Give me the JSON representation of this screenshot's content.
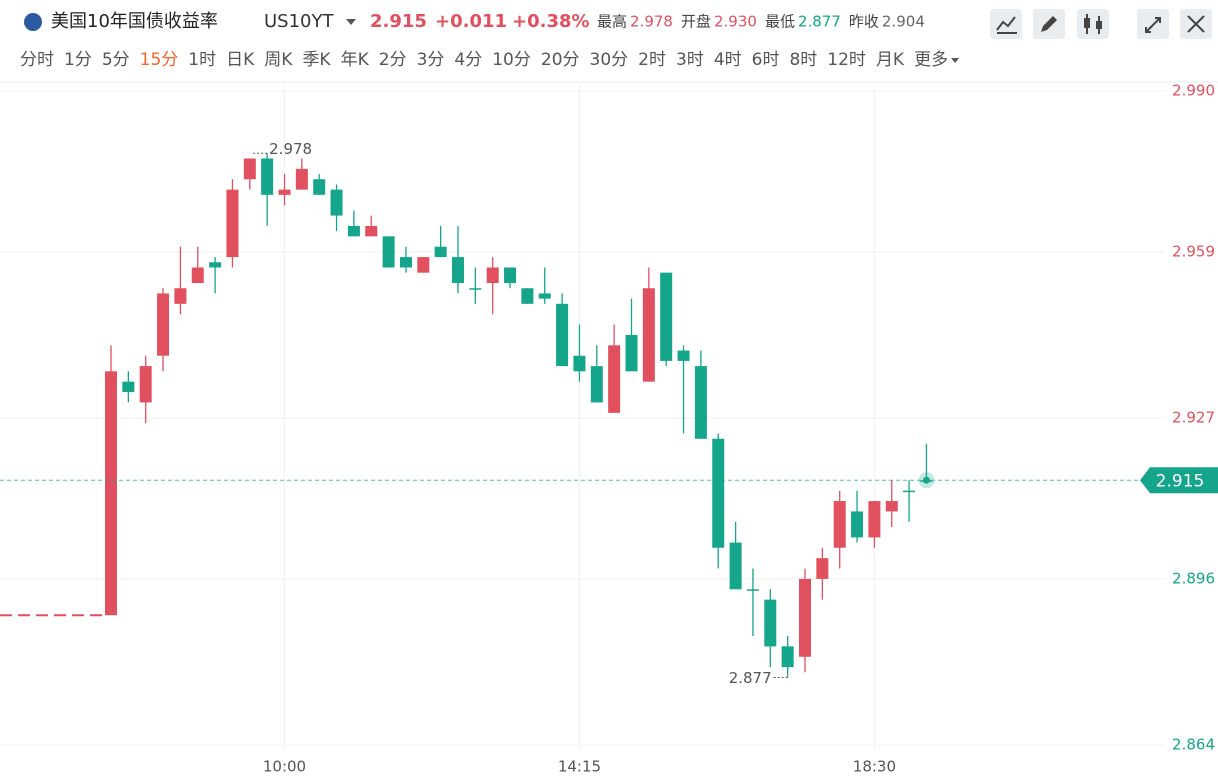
{
  "header": {
    "title": "美国10年国债收益率",
    "symbol": "US10YT",
    "price": "2.915",
    "change": "+0.011",
    "change_pct": "+0.38%",
    "stats": [
      {
        "label": "最高",
        "value": "2.978"
      },
      {
        "label": "开盘",
        "value": "2.930"
      },
      {
        "label": "最低",
        "value": "2.877"
      },
      {
        "label": "昨收",
        "value": "2.904"
      }
    ]
  },
  "tabs": [
    "分时",
    "1分",
    "5分",
    "15分",
    "1时",
    "日K",
    "周K",
    "季K",
    "年K",
    "2分",
    "3分",
    "4分",
    "10分",
    "20分",
    "30分",
    "2时",
    "3时",
    "4时",
    "6时",
    "8时",
    "12时",
    "月K",
    "更多"
  ],
  "active_tab": 3,
  "chart_data": {
    "type": "candlestick",
    "up_color": "#e0505f",
    "down_color": "#14a58a",
    "grid": true,
    "categories": [
      null,
      null,
      null,
      null,
      null,
      null,
      null,
      null,
      null,
      null,
      "10:00",
      null,
      null,
      null,
      null,
      null,
      null,
      null,
      null,
      null,
      null,
      null,
      null,
      null,
      null,
      null,
      null,
      "14:15",
      null,
      null,
      null,
      null,
      null,
      null,
      null,
      null,
      null,
      null,
      null,
      null,
      null,
      null,
      null,
      null,
      "18:30",
      null,
      null,
      null
    ],
    "open": [
      2.889,
      2.934,
      2.93,
      2.939,
      2.949,
      2.953,
      2.957,
      2.958,
      2.973,
      2.977,
      2.97,
      2.971,
      2.973,
      2.971,
      2.964,
      2.962,
      2.962,
      2.958,
      2.955,
      2.96,
      2.958,
      2.952,
      2.953,
      2.956,
      2.952,
      2.951,
      2.949,
      2.939,
      2.937,
      2.928,
      2.943,
      2.934,
      2.955,
      2.94,
      2.937,
      2.923,
      2.903,
      2.894,
      2.892,
      2.883,
      2.881,
      2.896,
      2.902,
      2.909,
      2.904,
      2.909,
      2.913,
      2.915
    ],
    "high": [
      2.941,
      2.936,
      2.939,
      2.952,
      2.96,
      2.96,
      2.958,
      2.973,
      2.977,
      2.978,
      2.974,
      2.977,
      2.974,
      2.972,
      2.967,
      2.966,
      2.962,
      2.96,
      2.958,
      2.964,
      2.964,
      2.956,
      2.958,
      2.956,
      2.952,
      2.956,
      2.951,
      2.945,
      2.941,
      2.945,
      2.95,
      2.956,
      2.955,
      2.941,
      2.94,
      2.924,
      2.907,
      2.898,
      2.894,
      2.885,
      2.898,
      2.902,
      2.913,
      2.913,
      2.911,
      2.915,
      2.915,
      2.922
    ],
    "low": [
      2.889,
      2.93,
      2.926,
      2.936,
      2.947,
      2.953,
      2.951,
      2.956,
      2.971,
      2.964,
      2.968,
      2.971,
      2.97,
      2.963,
      2.962,
      2.962,
      2.956,
      2.955,
      2.955,
      2.958,
      2.951,
      2.949,
      2.947,
      2.952,
      2.949,
      2.949,
      2.937,
      2.934,
      2.93,
      2.928,
      2.936,
      2.934,
      2.937,
      2.924,
      2.923,
      2.898,
      2.894,
      2.885,
      2.879,
      2.877,
      2.878,
      2.892,
      2.898,
      2.903,
      2.902,
      2.906,
      2.907,
      2.915
    ],
    "close": [
      2.936,
      2.932,
      2.937,
      2.951,
      2.952,
      2.956,
      2.956,
      2.971,
      2.977,
      2.97,
      2.971,
      2.975,
      2.97,
      2.966,
      2.962,
      2.964,
      2.956,
      2.956,
      2.958,
      2.958,
      2.953,
      2.952,
      2.956,
      2.953,
      2.949,
      2.95,
      2.937,
      2.936,
      2.93,
      2.941,
      2.936,
      2.952,
      2.938,
      2.938,
      2.923,
      2.902,
      2.894,
      2.894,
      2.883,
      2.879,
      2.896,
      2.9,
      2.911,
      2.904,
      2.911,
      2.911,
      2.913,
      2.915
    ],
    "ylim": [
      2.864,
      2.99
    ],
    "yticks": [
      {
        "value": 2.99,
        "label": "2.990"
      },
      2.959,
      2.927,
      2.896,
      2.864
    ]
  }
}
